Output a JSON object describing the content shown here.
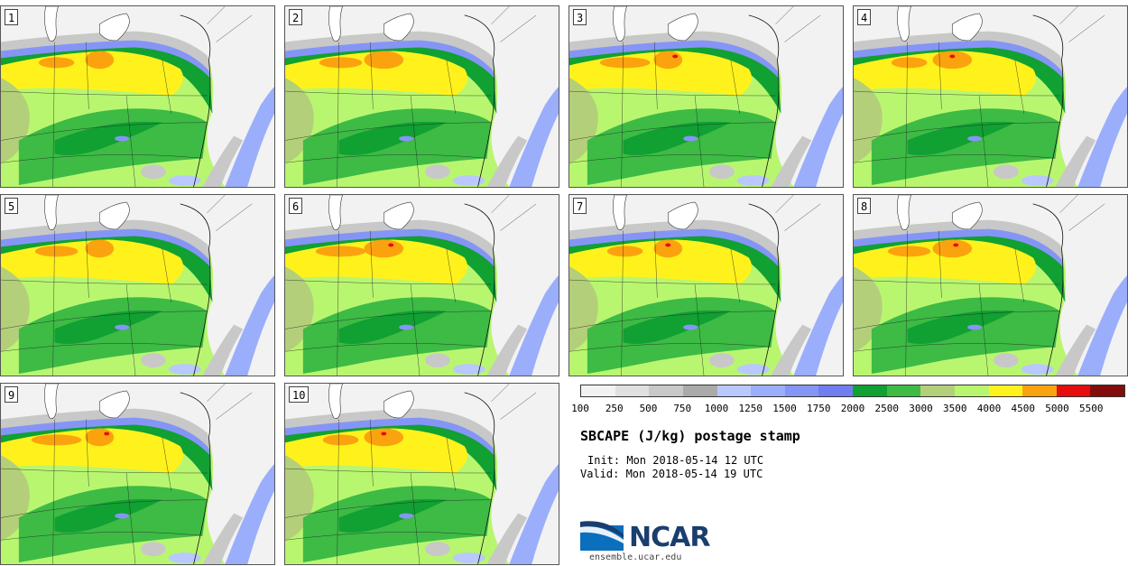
{
  "stamps": [
    {
      "label": "1"
    },
    {
      "label": "2"
    },
    {
      "label": "3"
    },
    {
      "label": "4"
    },
    {
      "label": "5"
    },
    {
      "label": "6"
    },
    {
      "label": "7"
    },
    {
      "label": "8"
    },
    {
      "label": "9"
    },
    {
      "label": "10"
    }
  ],
  "colorbar": {
    "colors": [
      "#f2f2f2",
      "#e0e0e0",
      "#c8c8c8",
      "#aaaaaa",
      "#b9c8ff",
      "#9aaefc",
      "#8595f6",
      "#6f7ef0",
      "#11a032",
      "#3dbb45",
      "#b4cf7a",
      "#b9f670",
      "#fff21c",
      "#fba30f",
      "#e60d0d",
      "#830d0d"
    ],
    "ticks": [
      "100",
      "250",
      "500",
      "750",
      "1000",
      "1250",
      "1500",
      "1750",
      "2000",
      "2500",
      "3000",
      "3500",
      "4000",
      "4500",
      "5000",
      "5500"
    ]
  },
  "info": {
    "title": "SBCAPE (J/kg) postage stamp",
    "init": "Init: Mon 2018-05-14 12 UTC",
    "valid": "Valid: Mon 2018-05-14 19 UTC"
  },
  "logo": {
    "name": "NCAR",
    "url": "ensemble.ucar.edu",
    "icon": "ncar-swoosh-logo",
    "color": "#1a3e6e",
    "accent": "#0a6fbd"
  }
}
